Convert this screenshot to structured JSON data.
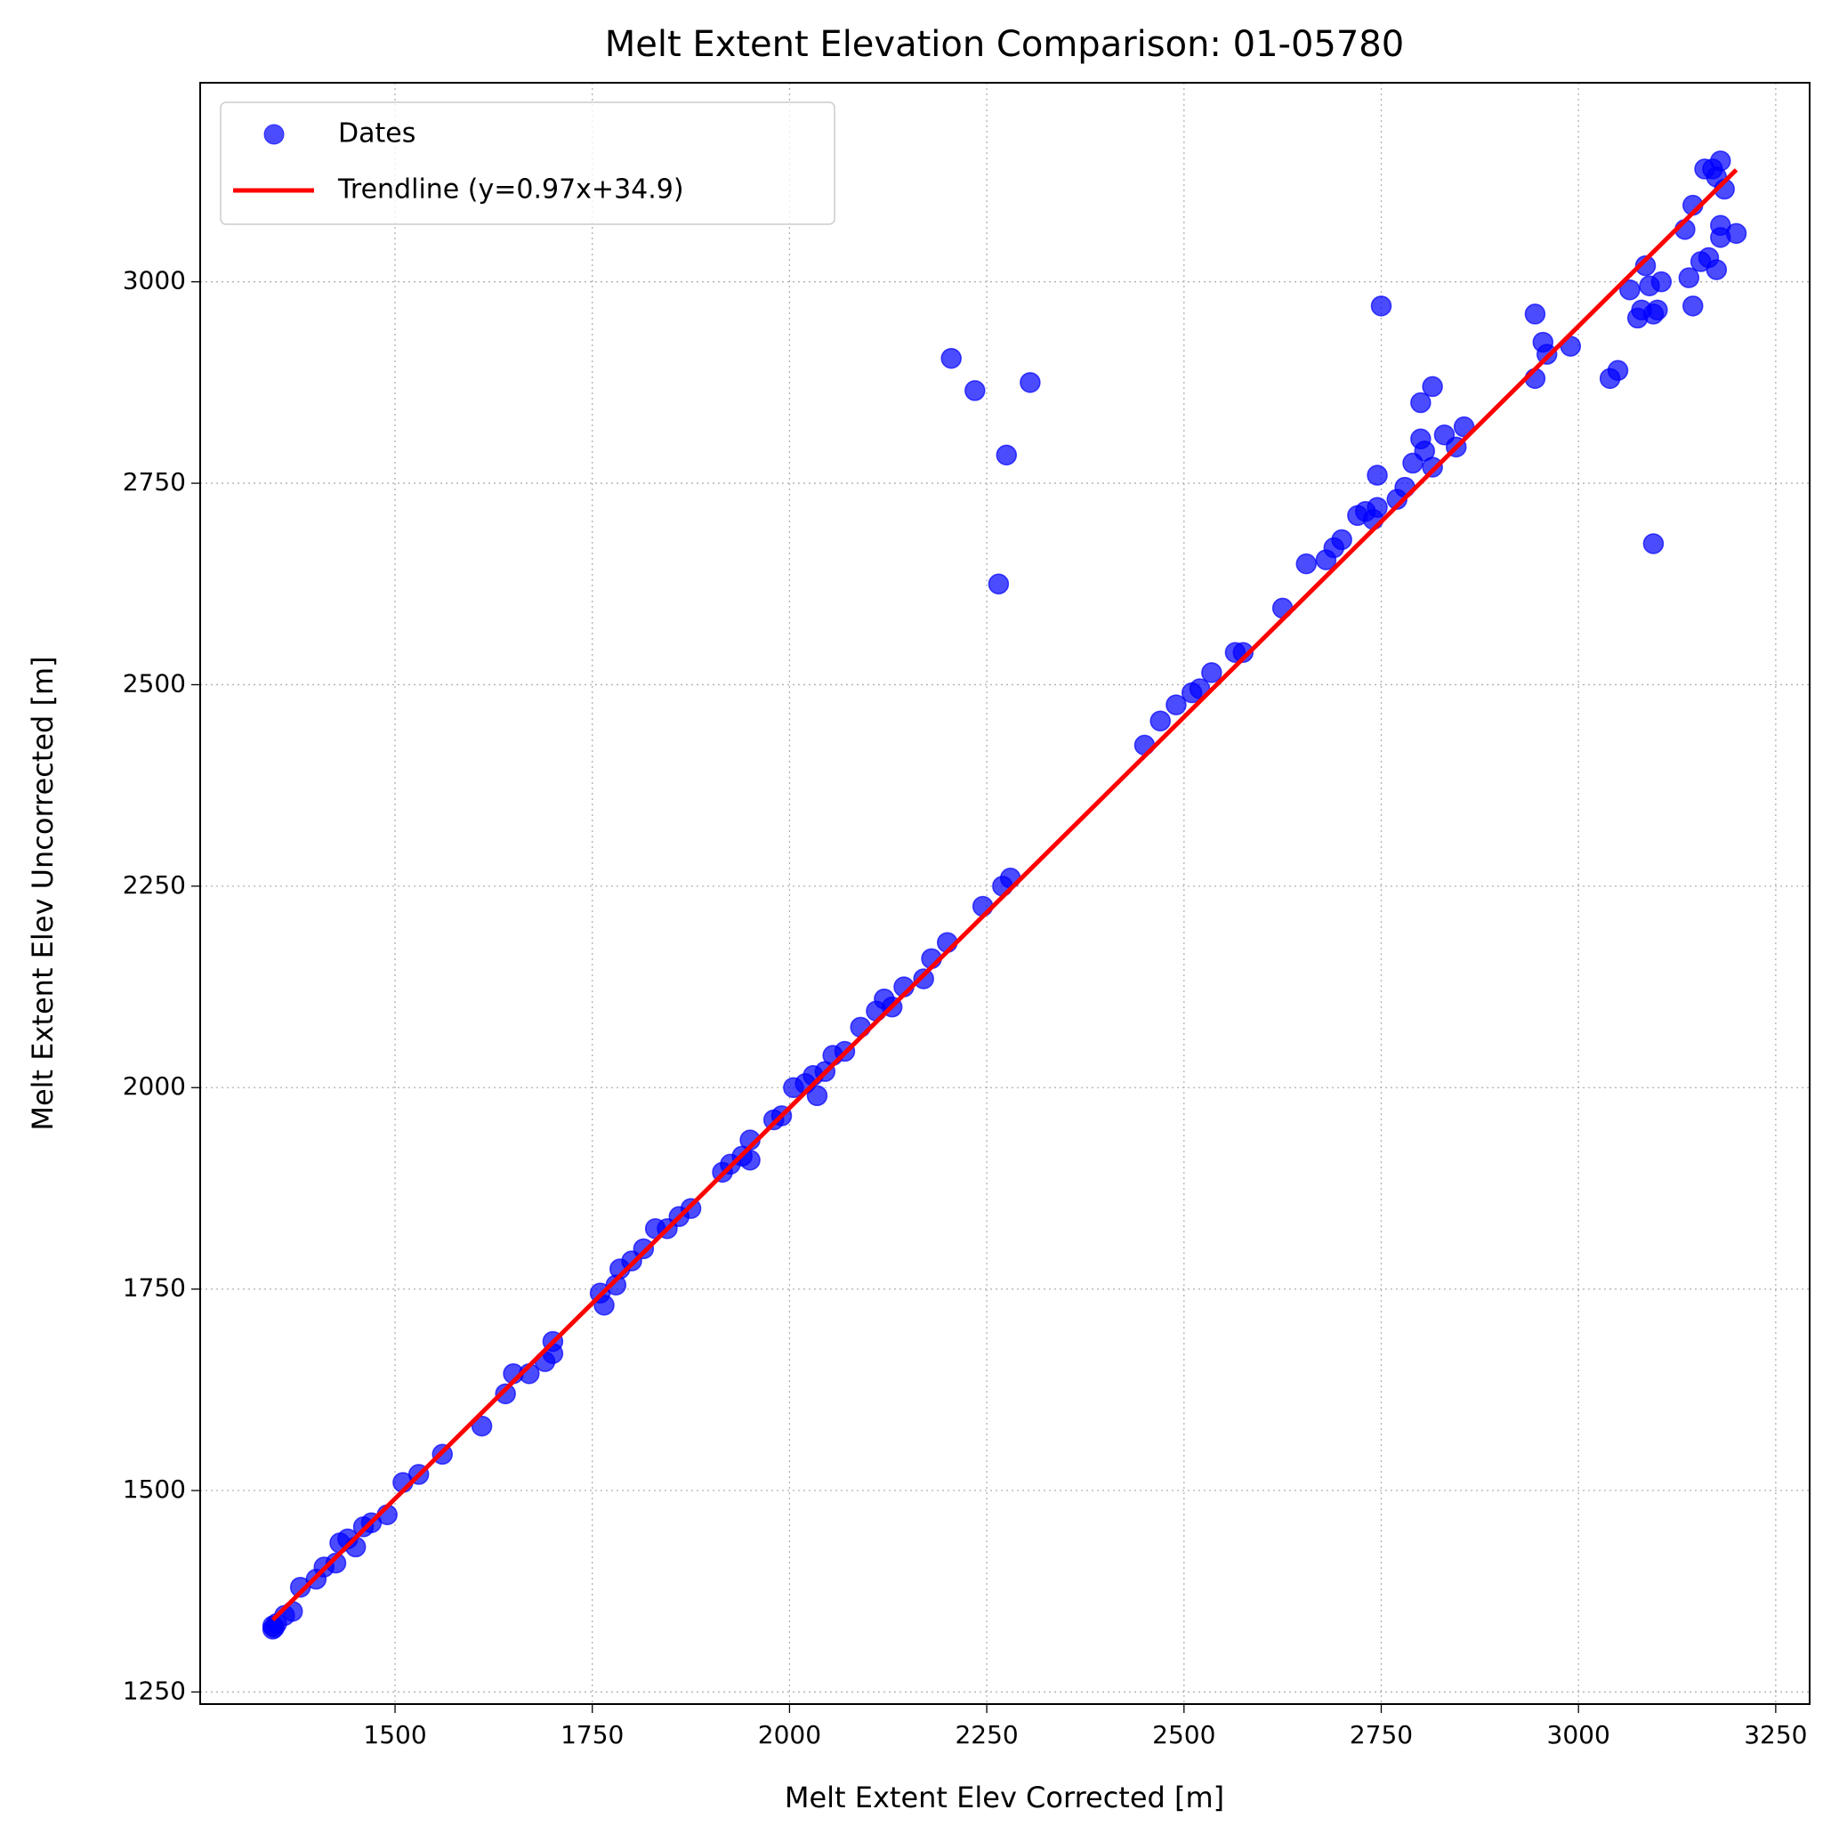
{
  "chart_data": {
    "type": "scatter",
    "title": "Melt Extent Elevation Comparison: 01-05780",
    "xlabel": "Melt Extent Elev Corrected [m]",
    "ylabel": "Melt Extent Elev Uncorrected [m]",
    "xlim": [
      1253,
      3293
    ],
    "ylim": [
      1235,
      3247
    ],
    "xticks": [
      1500,
      1750,
      2000,
      2250,
      2500,
      2750,
      3000,
      3250
    ],
    "yticks": [
      1250,
      1500,
      1750,
      2000,
      2250,
      2500,
      2750,
      3000
    ],
    "grid": true,
    "legend": "upper-left",
    "series": [
      {
        "name": "Dates",
        "type": "scatter",
        "color": "#0000ff",
        "x": [
          1345,
          1345,
          1347,
          1350,
          1360,
          1370,
          1380,
          1400,
          1410,
          1425,
          1430,
          1440,
          1450,
          1460,
          1470,
          1490,
          1510,
          1530,
          1560,
          1610,
          1640,
          1650,
          1670,
          1690,
          1700,
          1700,
          1760,
          1765,
          1780,
          1785,
          1800,
          1815,
          1830,
          1845,
          1860,
          1875,
          1915,
          1925,
          1940,
          1950,
          1950,
          1980,
          1990,
          2005,
          2020,
          2030,
          2035,
          2045,
          2055,
          2070,
          2090,
          2110,
          2120,
          2130,
          2145,
          2170,
          2180,
          2200,
          2205,
          2235,
          2245,
          2265,
          2270,
          2275,
          2280,
          2305,
          2450,
          2470,
          2490,
          2510,
          2520,
          2535,
          2565,
          2575,
          2625,
          2655,
          2680,
          2690,
          2700,
          2720,
          2730,
          2740,
          2745,
          2745,
          2750,
          2770,
          2780,
          2790,
          2800,
          2800,
          2805,
          2815,
          2815,
          2830,
          2845,
          2855,
          2945,
          2945,
          2955,
          2960,
          2990,
          3040,
          3050,
          3065,
          3075,
          3080,
          3085,
          3090,
          3095,
          3095,
          3100,
          3105,
          3135,
          3140,
          3145,
          3145,
          3155,
          3160,
          3165,
          3170,
          3175,
          3175,
          3180,
          3180,
          3180,
          3185,
          3200
        ],
        "values": [
          1328,
          1332,
          1330,
          1335,
          1345,
          1350,
          1380,
          1390,
          1405,
          1410,
          1435,
          1440,
          1430,
          1455,
          1460,
          1470,
          1510,
          1520,
          1545,
          1580,
          1620,
          1645,
          1645,
          1660,
          1685,
          1670,
          1745,
          1730,
          1755,
          1775,
          1785,
          1800,
          1825,
          1825,
          1840,
          1850,
          1895,
          1905,
          1915,
          1935,
          1910,
          1960,
          1965,
          2000,
          2005,
          2015,
          1990,
          2020,
          2040,
          2045,
          2075,
          2095,
          2110,
          2100,
          2125,
          2135,
          2160,
          2180,
          2905,
          2865,
          2225,
          2625,
          2250,
          2785,
          2260,
          2875,
          2425,
          2455,
          2475,
          2490,
          2495,
          2515,
          2540,
          2540,
          2595,
          2650,
          2655,
          2670,
          2680,
          2710,
          2715,
          2705,
          2720,
          2760,
          2970,
          2730,
          2745,
          2775,
          2805,
          2850,
          2790,
          2870,
          2770,
          2810,
          2795,
          2820,
          2960,
          2880,
          2925,
          2910,
          2920,
          2880,
          2890,
          2990,
          2955,
          2965,
          3020,
          2995,
          2675,
          2960,
          2965,
          3000,
          3065,
          3005,
          3095,
          2970,
          3025,
          3140,
          3030,
          3140,
          3015,
          3130,
          3055,
          3070,
          3150,
          3115,
          3060
        ]
      },
      {
        "name": "Trendline (y=0.97x+34.9)",
        "type": "line",
        "color": "#ff0000",
        "x": [
          1345,
          3200
        ],
        "values": [
          1339.5,
          3138.9
        ]
      }
    ]
  }
}
